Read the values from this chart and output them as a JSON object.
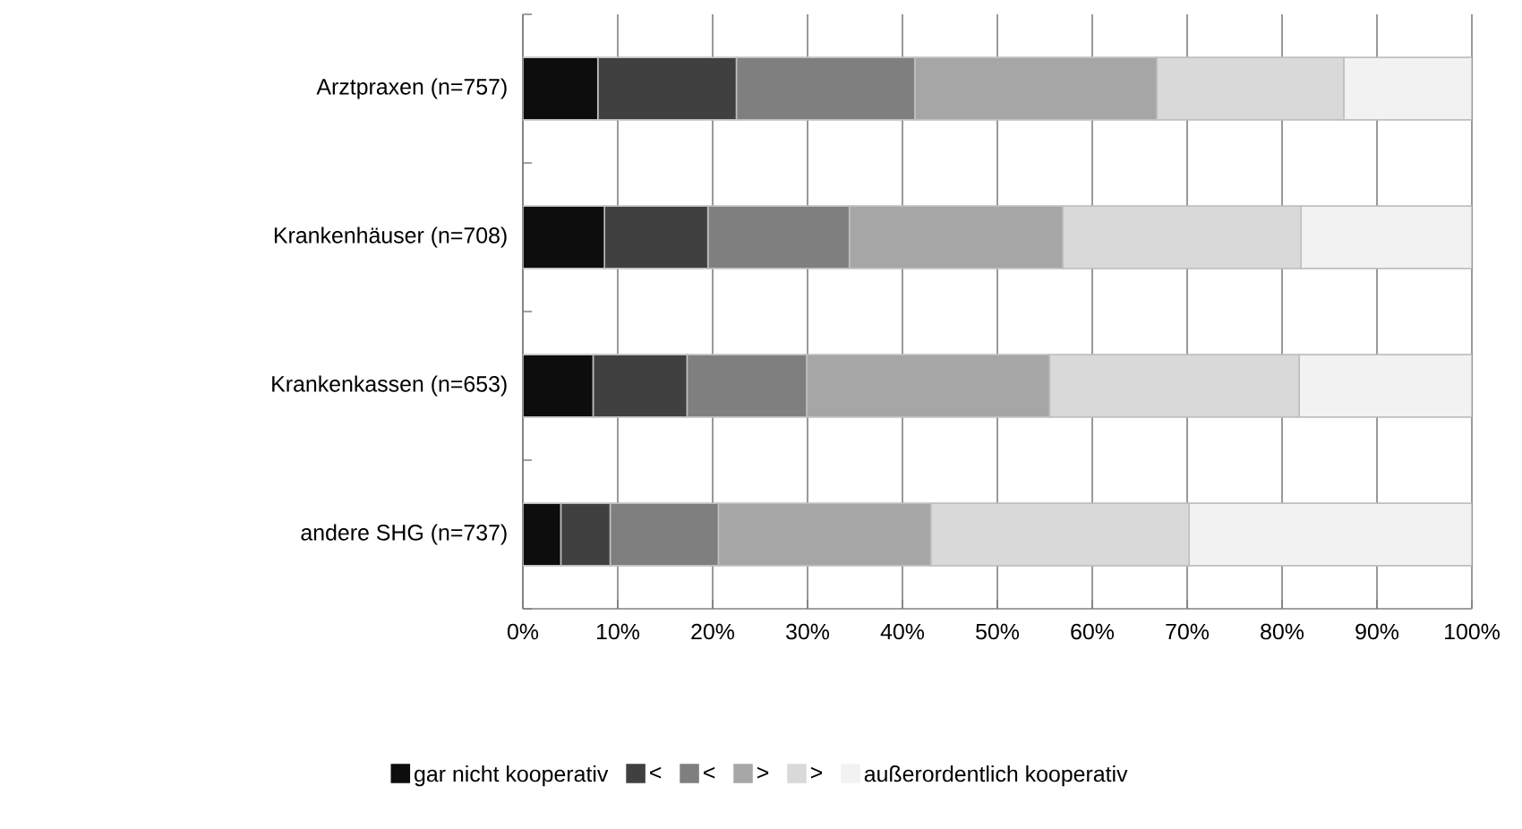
{
  "chart_data": {
    "type": "bar",
    "orientation": "horizontal",
    "stacked": true,
    "grid": "x",
    "legend": "bottom",
    "categories": [
      "Arztpraxen (n=757)",
      "Krankenhäuser (n=708)",
      "Krankenkassen (n=653)",
      "andere SHG (n=737)"
    ],
    "xlim": [
      0,
      100
    ],
    "xticks": [
      {
        "value": 0,
        "label": "0%"
      },
      {
        "value": 10,
        "label": "10%"
      },
      {
        "value": 20,
        "label": "20%"
      },
      {
        "value": 30,
        "label": "30%"
      },
      {
        "value": 40,
        "label": "40%"
      },
      {
        "value": 50,
        "label": "50%"
      },
      {
        "value": 60,
        "label": "60%"
      },
      {
        "value": 70,
        "label": "70%"
      },
      {
        "value": 80,
        "label": "80%"
      },
      {
        "value": 90,
        "label": "90%"
      },
      {
        "value": 100,
        "label": "100%"
      }
    ],
    "series": [
      {
        "name": "gar nicht kooperativ",
        "color": "#0d0d0d",
        "values": [
          7.9,
          8.6,
          7.4,
          4.0
        ]
      },
      {
        "name": "<",
        "color": "#404040",
        "values": [
          14.6,
          10.9,
          9.9,
          5.2
        ]
      },
      {
        "name": "<",
        "color": "#7f7f7f",
        "values": [
          18.8,
          14.9,
          12.6,
          11.4
        ]
      },
      {
        "name": ">",
        "color": "#a6a6a6",
        "values": [
          25.5,
          22.5,
          25.6,
          22.4
        ]
      },
      {
        "name": ">",
        "color": "#d9d9d9",
        "values": [
          19.7,
          25.1,
          26.3,
          27.2
        ]
      },
      {
        "name": "außerordentlich kooperativ",
        "color": "#f2f2f2",
        "values": [
          13.5,
          18.0,
          18.2,
          29.8
        ]
      }
    ]
  }
}
